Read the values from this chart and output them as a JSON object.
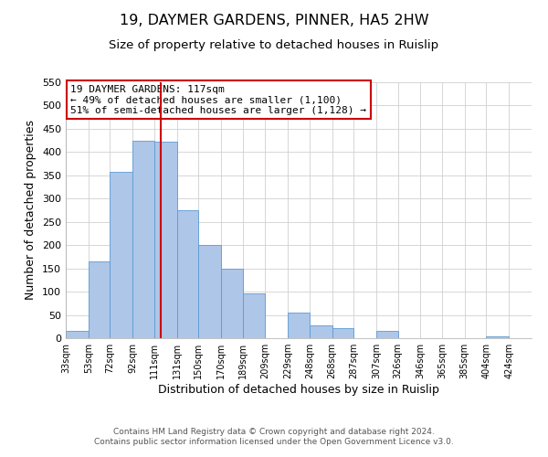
{
  "title": "19, DAYMER GARDENS, PINNER, HA5 2HW",
  "subtitle": "Size of property relative to detached houses in Ruislip",
  "xlabel": "Distribution of detached houses by size in Ruislip",
  "ylabel": "Number of detached properties",
  "footer_line1": "Contains HM Land Registry data © Crown copyright and database right 2024.",
  "footer_line2": "Contains public sector information licensed under the Open Government Licence v3.0.",
  "annotation_line1": "19 DAYMER GARDENS: 117sqm",
  "annotation_line2": "← 49% of detached houses are smaller (1,100)",
  "annotation_line3": "51% of semi-detached houses are larger (1,128) →",
  "bar_left_edges": [
    33,
    53,
    72,
    92,
    111,
    131,
    150,
    170,
    189,
    209,
    229,
    248,
    268,
    287,
    307,
    326,
    346,
    365,
    385,
    404
  ],
  "bar_widths": [
    20,
    19,
    20,
    19,
    20,
    19,
    20,
    19,
    20,
    20,
    19,
    20,
    19,
    20,
    19,
    20,
    19,
    20,
    19,
    20
  ],
  "bar_heights": [
    15,
    165,
    357,
    425,
    423,
    275,
    200,
    150,
    97,
    0,
    55,
    28,
    22,
    0,
    15,
    0,
    0,
    0,
    0,
    3
  ],
  "tick_labels": [
    "33sqm",
    "53sqm",
    "72sqm",
    "92sqm",
    "111sqm",
    "131sqm",
    "150sqm",
    "170sqm",
    "189sqm",
    "209sqm",
    "229sqm",
    "248sqm",
    "268sqm",
    "287sqm",
    "307sqm",
    "326sqm",
    "346sqm",
    "365sqm",
    "385sqm",
    "404sqm",
    "424sqm"
  ],
  "tick_positions": [
    33,
    53,
    72,
    92,
    111,
    131,
    150,
    170,
    189,
    209,
    229,
    248,
    268,
    287,
    307,
    326,
    346,
    365,
    385,
    404,
    424
  ],
  "ylim": [
    0,
    550
  ],
  "xlim": [
    33,
    444
  ],
  "marker_x": 117,
  "bar_fill_color": "#aec6e8",
  "bar_edge_color": "#5b9bd5",
  "marker_color": "#cc0000",
  "annotation_box_edge_color": "#cc0000",
  "grid_color": "#d0d0d0",
  "background_color": "#ffffff",
  "title_fontsize": 11.5,
  "subtitle_fontsize": 9.5,
  "axis_label_fontsize": 9,
  "tick_fontsize": 7,
  "annotation_fontsize": 8,
  "footer_fontsize": 6.5
}
